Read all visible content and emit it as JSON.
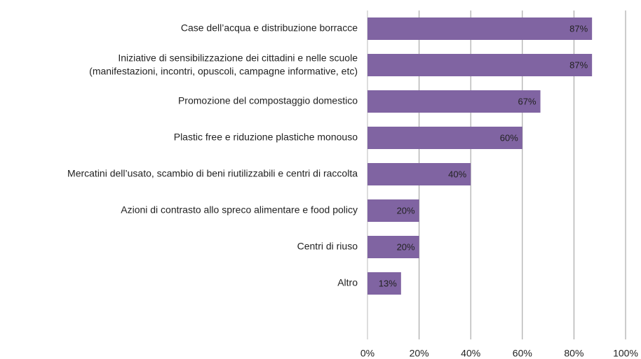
{
  "chart_data": {
    "type": "bar",
    "orientation": "horizontal",
    "categories": [
      "Case dell’acqua e distribuzione borracce",
      "Iniziative di sensibilizzazione dei cittadini e nelle scuole\n(manifestazioni, incontri, opuscoli, campagne informative, etc)",
      "Promozione del compostaggio domestico",
      "Plastic free e riduzione plastiche monouso",
      "Mercatini dell’usato, scambio di beni riutilizzabili e centri di raccolta",
      "Azioni di contrasto allo spreco alimentare e food policy",
      "Centri di riuso",
      "Altro"
    ],
    "values": [
      87,
      87,
      67,
      60,
      40,
      20,
      20,
      13
    ],
    "value_labels": [
      "87%",
      "87%",
      "67%",
      "60%",
      "40%",
      "20%",
      "20%",
      "13%"
    ],
    "color": "#8064a2",
    "xlim": [
      0,
      100
    ],
    "xticks": [
      {
        "value": 0,
        "label": "0%"
      },
      {
        "value": 20,
        "label": "20%"
      },
      {
        "value": 40,
        "label": "40%"
      },
      {
        "value": 60,
        "label": "60%"
      },
      {
        "value": 80,
        "label": "80%"
      },
      {
        "value": 100,
        "label": "100%"
      }
    ],
    "grid": true
  }
}
